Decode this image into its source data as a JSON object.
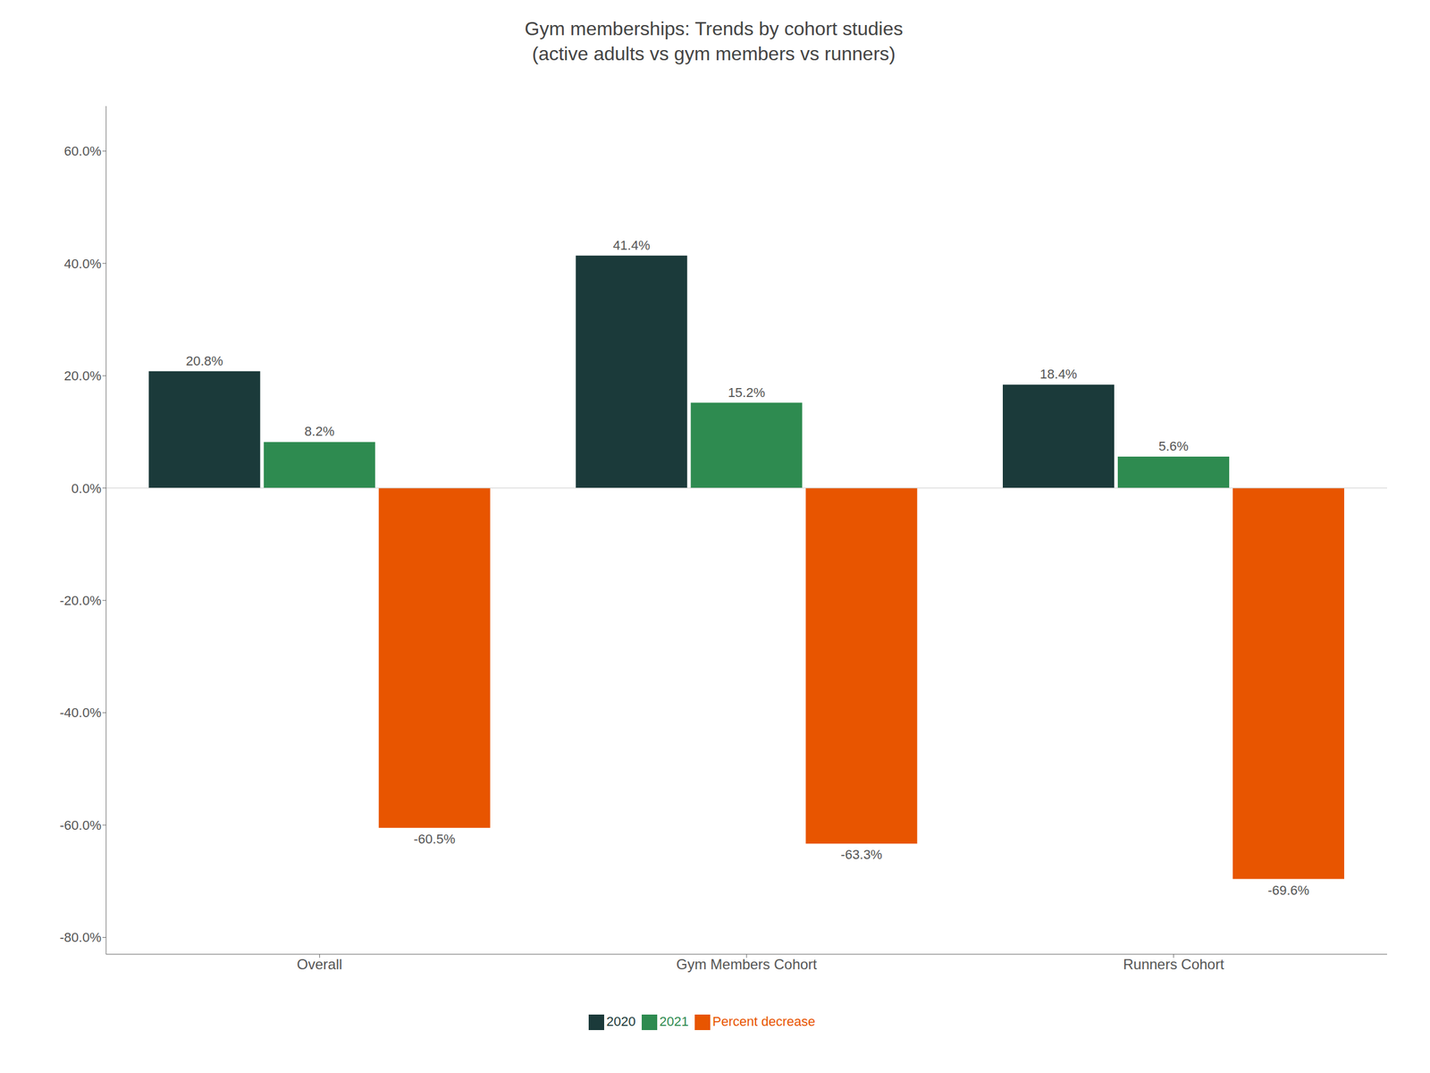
{
  "chart_data": {
    "type": "bar",
    "title": "Gym memberships: Trends by cohort studies\n(active adults vs gym members vs runners)",
    "categories": [
      "Overall",
      "Gym Members Cohort",
      "Runners Cohort"
    ],
    "series": [
      {
        "name": "2020",
        "color": "#1b3a3a",
        "values": [
          20.8,
          41.4,
          18.4
        ],
        "value_labels": [
          "20.8%",
          "41.4%",
          "18.4%"
        ]
      },
      {
        "name": "2021",
        "color": "#2e8b50",
        "values": [
          8.2,
          15.2,
          5.6
        ],
        "value_labels": [
          "8.2%",
          "15.2%",
          "5.6%"
        ]
      },
      {
        "name": "Percent decrease",
        "color": "#e85500",
        "values": [
          -60.5,
          -63.3,
          -69.6
        ],
        "value_labels": [
          "-60.5%",
          "-63.3%",
          "-69.6%"
        ]
      }
    ],
    "ylim": [
      -83,
      68
    ],
    "yticks": [
      {
        "value": -80,
        "label": "-80.0%"
      },
      {
        "value": -60,
        "label": "-60.0%"
      },
      {
        "value": -40,
        "label": "-40.0%"
      },
      {
        "value": -20,
        "label": "-20.0%"
      },
      {
        "value": 0,
        "label": "0.0%"
      },
      {
        "value": 20,
        "label": "20.0%"
      },
      {
        "value": 40,
        "label": "40.0%"
      },
      {
        "value": 60,
        "label": "60.0%"
      }
    ],
    "grid": false,
    "legend": "bottom",
    "data_labels": true
  }
}
